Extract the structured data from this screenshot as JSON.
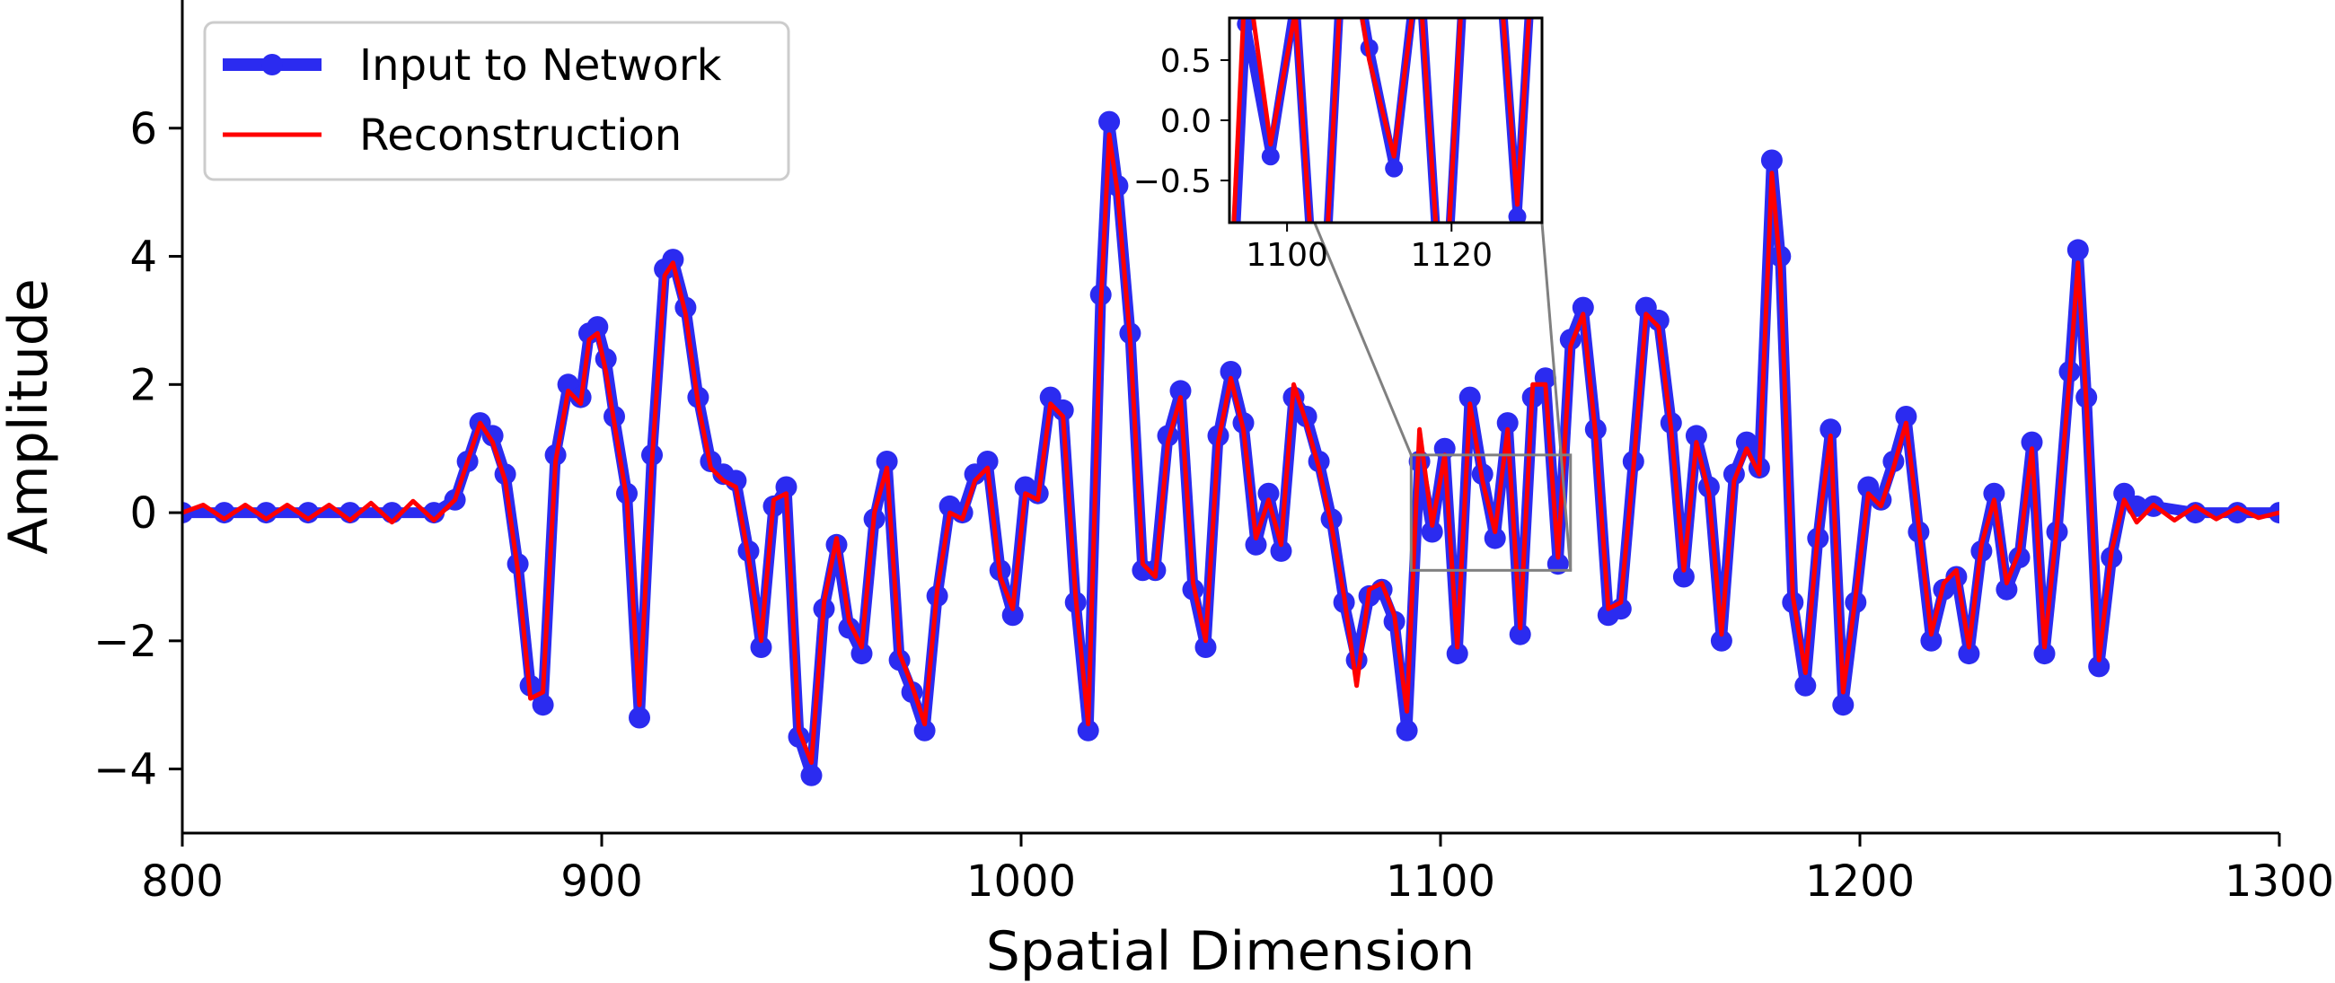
{
  "chart_data": {
    "type": "line",
    "xlabel": "Spatial Dimension",
    "ylabel": "Amplitude",
    "xlim": [
      800,
      1300
    ],
    "ylim": [
      -5,
      8
    ],
    "x_ticks": [
      800,
      900,
      1000,
      1100,
      1200,
      1300
    ],
    "x_tick_labels": [
      "800",
      "900",
      "1000",
      "1100",
      "1200",
      "1300"
    ],
    "y_ticks": [
      -4,
      -2,
      0,
      2,
      4,
      6
    ],
    "y_tick_labels": [
      "−4",
      "−2",
      "0",
      "2",
      "4",
      "6"
    ],
    "grid": false,
    "legend_position": "top-left",
    "series": [
      {
        "name": "Input to Network",
        "color": "#2b2bf0",
        "marker": "circle",
        "x": [
          800,
          810,
          820,
          830,
          840,
          850,
          860,
          865,
          868,
          871,
          874,
          877,
          880,
          883,
          886,
          889,
          892,
          895,
          897,
          899,
          901,
          903,
          906,
          909,
          912,
          915,
          917,
          920,
          923,
          926,
          929,
          932,
          935,
          938,
          941,
          944,
          947,
          950,
          953,
          956,
          959,
          962,
          965,
          968,
          971,
          974,
          977,
          980,
          983,
          986,
          989,
          992,
          995,
          998,
          1001,
          1004,
          1007,
          1010,
          1013,
          1016,
          1019,
          1021,
          1023,
          1026,
          1029,
          1032,
          1035,
          1038,
          1041,
          1044,
          1047,
          1050,
          1053,
          1056,
          1059,
          1062,
          1065,
          1068,
          1071,
          1074,
          1077,
          1080,
          1083,
          1086,
          1089,
          1092,
          1095,
          1098,
          1101,
          1104,
          1107,
          1110,
          1113,
          1116,
          1119,
          1122,
          1125,
          1128,
          1131,
          1134,
          1137,
          1140,
          1143,
          1146,
          1149,
          1152,
          1155,
          1158,
          1161,
          1164,
          1167,
          1170,
          1173,
          1176,
          1179,
          1181,
          1184,
          1187,
          1190,
          1193,
          1196,
          1199,
          1202,
          1205,
          1208,
          1211,
          1214,
          1217,
          1220,
          1223,
          1226,
          1229,
          1232,
          1235,
          1238,
          1241,
          1244,
          1247,
          1250,
          1252,
          1254,
          1257,
          1260,
          1263,
          1266,
          1270,
          1280,
          1290,
          1300
        ],
        "y": [
          0,
          0,
          0,
          0,
          0,
          0,
          0,
          0.2,
          0.8,
          1.4,
          1.2,
          0.6,
          -0.8,
          -2.7,
          -3.0,
          0.9,
          2.0,
          1.8,
          2.8,
          2.9,
          2.4,
          1.5,
          0.3,
          -3.2,
          0.9,
          3.8,
          3.95,
          3.2,
          1.8,
          0.8,
          0.6,
          0.5,
          -0.6,
          -2.1,
          0.1,
          0.4,
          -3.5,
          -4.1,
          -1.5,
          -0.5,
          -1.8,
          -2.2,
          -0.1,
          0.8,
          -2.3,
          -2.8,
          -3.4,
          -1.3,
          0.1,
          0.0,
          0.6,
          0.8,
          -0.9,
          -1.6,
          0.4,
          0.3,
          1.8,
          1.6,
          -1.4,
          -3.4,
          3.4,
          6.1,
          5.1,
          2.8,
          -0.9,
          -0.9,
          1.2,
          1.9,
          -1.2,
          -2.1,
          1.2,
          2.2,
          1.4,
          -0.5,
          0.3,
          -0.6,
          1.8,
          1.5,
          0.8,
          -0.1,
          -1.4,
          -2.3,
          -1.3,
          -1.2,
          -1.7,
          -3.4,
          0.8,
          -0.3,
          1.0,
          -2.2,
          1.8,
          0.6,
          -0.4,
          1.4,
          -1.9,
          1.8,
          2.1,
          -0.8,
          2.7,
          3.2,
          1.3,
          -1.6,
          -1.5,
          0.8,
          3.2,
          3.0,
          1.4,
          -1.0,
          1.2,
          0.4,
          -2.0,
          0.6,
          1.1,
          0.7,
          5.5,
          4.0,
          -1.4,
          -2.7,
          -0.4,
          1.3,
          -3.0,
          -1.4,
          0.4,
          0.2,
          0.8,
          1.5,
          -0.3,
          -2.0,
          -1.2,
          -1.0,
          -2.2,
          -0.6,
          0.3,
          -1.2,
          -0.7,
          1.1,
          -2.2,
          -0.3,
          2.2,
          4.1,
          1.8,
          -2.4,
          -0.7,
          0.3,
          0.1,
          0.1,
          0,
          0,
          0
        ]
      },
      {
        "name": "Reconstruction",
        "color": "#ff0000",
        "marker": "none",
        "x": [
          800,
          805,
          810,
          815,
          820,
          825,
          830,
          835,
          840,
          845,
          850,
          855,
          860,
          865,
          868,
          871,
          874,
          877,
          880,
          883,
          886,
          889,
          892,
          895,
          897,
          899,
          901,
          903,
          906,
          909,
          912,
          915,
          917,
          920,
          923,
          926,
          929,
          932,
          935,
          938,
          941,
          944,
          947,
          950,
          953,
          956,
          959,
          962,
          965,
          968,
          971,
          974,
          977,
          980,
          983,
          986,
          989,
          992,
          995,
          998,
          1001,
          1004,
          1007,
          1010,
          1013,
          1016,
          1019,
          1021,
          1023,
          1026,
          1029,
          1032,
          1035,
          1038,
          1041,
          1044,
          1047,
          1050,
          1053,
          1056,
          1059,
          1062,
          1065,
          1068,
          1071,
          1074,
          1077,
          1080,
          1083,
          1086,
          1089,
          1092,
          1095,
          1098,
          1101,
          1104,
          1107,
          1110,
          1113,
          1116,
          1119,
          1122,
          1125,
          1128,
          1131,
          1134,
          1137,
          1140,
          1143,
          1146,
          1149,
          1152,
          1155,
          1158,
          1161,
          1164,
          1167,
          1170,
          1173,
          1176,
          1179,
          1181,
          1184,
          1187,
          1190,
          1193,
          1196,
          1199,
          1202,
          1205,
          1208,
          1211,
          1214,
          1217,
          1220,
          1223,
          1226,
          1229,
          1232,
          1235,
          1238,
          1241,
          1244,
          1247,
          1250,
          1252,
          1254,
          1257,
          1260,
          1263,
          1266,
          1270,
          1275,
          1280,
          1285,
          1290,
          1295,
          1300
        ],
        "y": [
          0,
          0.12,
          -0.1,
          0.12,
          -0.1,
          0.12,
          -0.1,
          0.12,
          -0.12,
          0.15,
          -0.15,
          0.18,
          -0.12,
          0.2,
          0.8,
          1.4,
          1.1,
          0.5,
          -0.9,
          -2.9,
          -2.8,
          0.8,
          1.9,
          1.7,
          2.7,
          2.8,
          2.2,
          1.4,
          0.2,
          -3.0,
          0.8,
          3.7,
          3.9,
          3.1,
          1.7,
          0.7,
          0.5,
          0.4,
          -0.7,
          -2.0,
          0.2,
          0.3,
          -3.4,
          -3.9,
          -1.4,
          -0.4,
          -1.7,
          -2.1,
          0.0,
          0.7,
          -2.2,
          -2.7,
          -3.3,
          -1.2,
          0.0,
          -0.1,
          0.5,
          0.7,
          -1.0,
          -1.5,
          0.3,
          0.2,
          1.7,
          1.5,
          -1.3,
          -3.3,
          3.2,
          5.9,
          5.0,
          2.7,
          -0.8,
          -1.0,
          1.1,
          1.8,
          -1.1,
          -2.0,
          1.1,
          2.1,
          1.3,
          -0.4,
          0.2,
          -0.5,
          2.0,
          1.4,
          0.7,
          -0.2,
          -1.3,
          -2.7,
          -1.2,
          -1.1,
          -1.6,
          -3.1,
          1.3,
          -0.2,
          0.9,
          -2.1,
          1.7,
          0.5,
          -0.3,
          1.3,
          -1.8,
          2.0,
          2.0,
          -0.7,
          2.6,
          3.1,
          1.2,
          -1.5,
          -1.4,
          0.7,
          3.1,
          2.9,
          1.3,
          -0.9,
          1.1,
          0.3,
          -1.9,
          0.5,
          1.0,
          0.6,
          5.3,
          3.8,
          -1.3,
          -2.5,
          -0.3,
          1.2,
          -2.8,
          -1.3,
          0.3,
          0.1,
          0.7,
          1.4,
          -0.2,
          -1.9,
          -1.1,
          -0.9,
          -2.1,
          -0.5,
          0.2,
          -1.1,
          -0.6,
          1.0,
          -2.1,
          -0.2,
          2.1,
          3.9,
          1.7,
          -2.3,
          -0.6,
          0.2,
          -0.15,
          0.12,
          -0.12,
          0.1,
          -0.1,
          0.08,
          -0.08,
          0
        ]
      }
    ],
    "inset": {
      "xlim": [
        1093,
        1131
      ],
      "ylim": [
        -0.85,
        0.85
      ],
      "x_ticks": [
        1100,
        1120
      ],
      "x_tick_labels": [
        "1100",
        "1120"
      ],
      "y_ticks": [
        0.5,
        0.0,
        -0.5
      ],
      "y_tick_labels": [
        "0.5",
        "0.0",
        "−0.5"
      ],
      "zoom_box_y": [
        -0.9,
        0.9
      ]
    }
  }
}
